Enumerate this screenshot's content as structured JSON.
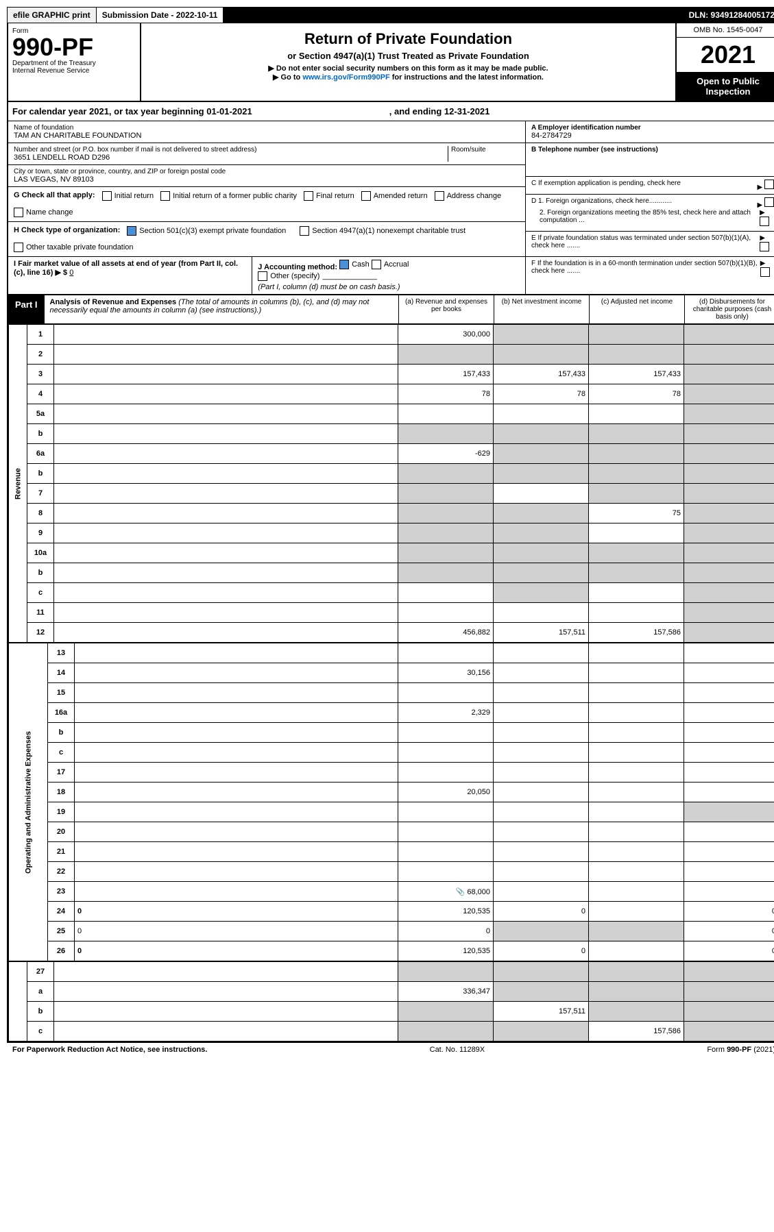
{
  "topbar": {
    "efile": "efile GRAPHIC print",
    "submission": "Submission Date - 2022-10-11",
    "dln": "DLN: 93491284005172"
  },
  "header": {
    "form_label": "Form",
    "form_number": "990-PF",
    "dept": "Department of the Treasury",
    "irs": "Internal Revenue Service",
    "title": "Return of Private Foundation",
    "subtitle": "or Section 4947(a)(1) Trust Treated as Private Foundation",
    "note1": "▶ Do not enter social security numbers on this form as it may be made public.",
    "note2_pre": "▶ Go to ",
    "note2_link": "www.irs.gov/Form990PF",
    "note2_post": " for instructions and the latest information.",
    "omb": "OMB No. 1545-0047",
    "year": "2021",
    "open": "Open to Public Inspection"
  },
  "calyear": "For calendar year 2021, or tax year beginning 01-01-2021",
  "calyear_end": ", and ending 12-31-2021",
  "info": {
    "name_label": "Name of foundation",
    "name": "TAM AN CHARITABLE FOUNDATION",
    "addr_label": "Number and street (or P.O. box number if mail is not delivered to street address)",
    "addr": "3651 LENDELL ROAD D296",
    "room_label": "Room/suite",
    "city_label": "City or town, state or province, country, and ZIP or foreign postal code",
    "city": "LAS VEGAS, NV  89103",
    "ein_label": "A Employer identification number",
    "ein": "84-2784729",
    "phone_label": "B Telephone number (see instructions)",
    "pending": "C If exemption application is pending, check here",
    "d1": "D 1. Foreign organizations, check here............",
    "d2": "2. Foreign organizations meeting the 85% test, check here and attach computation ...",
    "e": "E If private foundation status was terminated under section 507(b)(1)(A), check here .......",
    "f": "F If the foundation is in a 60-month termination under section 507(b)(1)(B), check here .......",
    "g": "G Check all that apply:",
    "g_opts": [
      "Initial return",
      "Initial return of a former public charity",
      "Final return",
      "Amended return",
      "Address change",
      "Name change"
    ],
    "h": "H Check type of organization:",
    "h1": "Section 501(c)(3) exempt private foundation",
    "h2": "Section 4947(a)(1) nonexempt charitable trust",
    "h3": "Other taxable private foundation",
    "i": "I Fair market value of all assets at end of year (from Part II, col. (c), line 16) ▶ $",
    "i_val": "0",
    "j": "J Accounting method:",
    "j_opts": [
      "Cash",
      "Accrual",
      "Other (specify)"
    ],
    "j_note": "(Part I, column (d) must be on cash basis.)"
  },
  "part1": {
    "label": "Part I",
    "title": "Analysis of Revenue and Expenses",
    "title_note": "(The total of amounts in columns (b), (c), and (d) may not necessarily equal the amounts in column (a) (see instructions).)",
    "col_a": "(a) Revenue and expenses per books",
    "col_b": "(b) Net investment income",
    "col_c": "(c) Adjusted net income",
    "col_d": "(d) Disbursements for charitable purposes (cash basis only)"
  },
  "sections": {
    "revenue": "Revenue",
    "opex": "Operating and Administrative Expenses"
  },
  "rows": [
    {
      "n": "1",
      "d": "",
      "a": "300,000",
      "b": "",
      "c": "",
      "shade_b": true,
      "shade_c": true,
      "shade_d": true
    },
    {
      "n": "2",
      "d": "",
      "a": "",
      "b": "",
      "c": "",
      "shade_a": true,
      "shade_b": true,
      "shade_c": true,
      "shade_d": true
    },
    {
      "n": "3",
      "d": "",
      "a": "157,433",
      "b": "157,433",
      "c": "157,433",
      "shade_d": true
    },
    {
      "n": "4",
      "d": "",
      "a": "78",
      "b": "78",
      "c": "78",
      "shade_d": true
    },
    {
      "n": "5a",
      "d": "",
      "a": "",
      "b": "",
      "c": "",
      "shade_d": true
    },
    {
      "n": "b",
      "d": "",
      "a": "",
      "b": "",
      "c": "",
      "shade_a": true,
      "shade_b": true,
      "shade_c": true,
      "shade_d": true
    },
    {
      "n": "6a",
      "d": "",
      "a": "-629",
      "b": "",
      "c": "",
      "shade_b": true,
      "shade_c": true,
      "shade_d": true
    },
    {
      "n": "b",
      "d": "",
      "a": "",
      "b": "",
      "c": "",
      "shade_a": true,
      "shade_b": true,
      "shade_c": true,
      "shade_d": true
    },
    {
      "n": "7",
      "d": "",
      "a": "",
      "b": "",
      "c": "",
      "shade_a": true,
      "shade_c": true,
      "shade_d": true
    },
    {
      "n": "8",
      "d": "",
      "a": "",
      "b": "",
      "c": "75",
      "shade_a": true,
      "shade_b": true,
      "shade_d": true
    },
    {
      "n": "9",
      "d": "",
      "a": "",
      "b": "",
      "c": "",
      "shade_a": true,
      "shade_b": true,
      "shade_d": true
    },
    {
      "n": "10a",
      "d": "",
      "a": "",
      "b": "",
      "c": "",
      "shade_a": true,
      "shade_b": true,
      "shade_c": true,
      "shade_d": true
    },
    {
      "n": "b",
      "d": "",
      "a": "",
      "b": "",
      "c": "",
      "shade_a": true,
      "shade_b": true,
      "shade_c": true,
      "shade_d": true
    },
    {
      "n": "c",
      "d": "",
      "a": "",
      "b": "",
      "c": "",
      "shade_b": true,
      "shade_d": true
    },
    {
      "n": "11",
      "d": "",
      "a": "",
      "b": "",
      "c": "",
      "shade_d": true
    },
    {
      "n": "12",
      "d": "",
      "bold": true,
      "a": "456,882",
      "b": "157,511",
      "c": "157,586",
      "shade_d": true
    }
  ],
  "exp_rows": [
    {
      "n": "13",
      "d": "",
      "a": "",
      "b": "",
      "c": ""
    },
    {
      "n": "14",
      "d": "",
      "a": "30,156",
      "b": "",
      "c": ""
    },
    {
      "n": "15",
      "d": "",
      "a": "",
      "b": "",
      "c": ""
    },
    {
      "n": "16a",
      "d": "",
      "a": "2,329",
      "b": "",
      "c": ""
    },
    {
      "n": "b",
      "d": "",
      "a": "",
      "b": "",
      "c": ""
    },
    {
      "n": "c",
      "d": "",
      "a": "",
      "b": "",
      "c": ""
    },
    {
      "n": "17",
      "d": "",
      "a": "",
      "b": "",
      "c": ""
    },
    {
      "n": "18",
      "d": "",
      "a": "20,050",
      "b": "",
      "c": ""
    },
    {
      "n": "19",
      "d": "",
      "a": "",
      "b": "",
      "c": "",
      "shade_d": true
    },
    {
      "n": "20",
      "d": "",
      "a": "",
      "b": "",
      "c": ""
    },
    {
      "n": "21",
      "d": "",
      "a": "",
      "b": "",
      "c": ""
    },
    {
      "n": "22",
      "d": "",
      "a": "",
      "b": "",
      "c": ""
    },
    {
      "n": "23",
      "d": "",
      "a": "📎   68,000",
      "b": "",
      "c": ""
    },
    {
      "n": "24",
      "d": "0",
      "bold": true,
      "a": "120,535",
      "b": "0",
      "c": ""
    },
    {
      "n": "25",
      "d": "0",
      "a": "0",
      "b": "",
      "c": "",
      "shade_b": true,
      "shade_c": true
    },
    {
      "n": "26",
      "d": "0",
      "bold": true,
      "a": "120,535",
      "b": "0",
      "c": ""
    }
  ],
  "bottom_rows": [
    {
      "n": "27",
      "d": "",
      "a": "",
      "b": "",
      "c": "",
      "shade_a": true,
      "shade_b": true,
      "shade_c": true,
      "shade_d": true
    },
    {
      "n": "a",
      "d": "",
      "bold": true,
      "a": "336,347",
      "b": "",
      "c": "",
      "shade_b": true,
      "shade_c": true,
      "shade_d": true
    },
    {
      "n": "b",
      "d": "",
      "bold": true,
      "a": "",
      "b": "157,511",
      "c": "",
      "shade_a": true,
      "shade_c": true,
      "shade_d": true
    },
    {
      "n": "c",
      "d": "",
      "bold": true,
      "a": "",
      "b": "",
      "c": "157,586",
      "shade_a": true,
      "shade_b": true,
      "shade_d": true
    }
  ],
  "footer": {
    "left": "For Paperwork Reduction Act Notice, see instructions.",
    "mid": "Cat. No. 11289X",
    "right": "Form 990-PF (2021)"
  }
}
